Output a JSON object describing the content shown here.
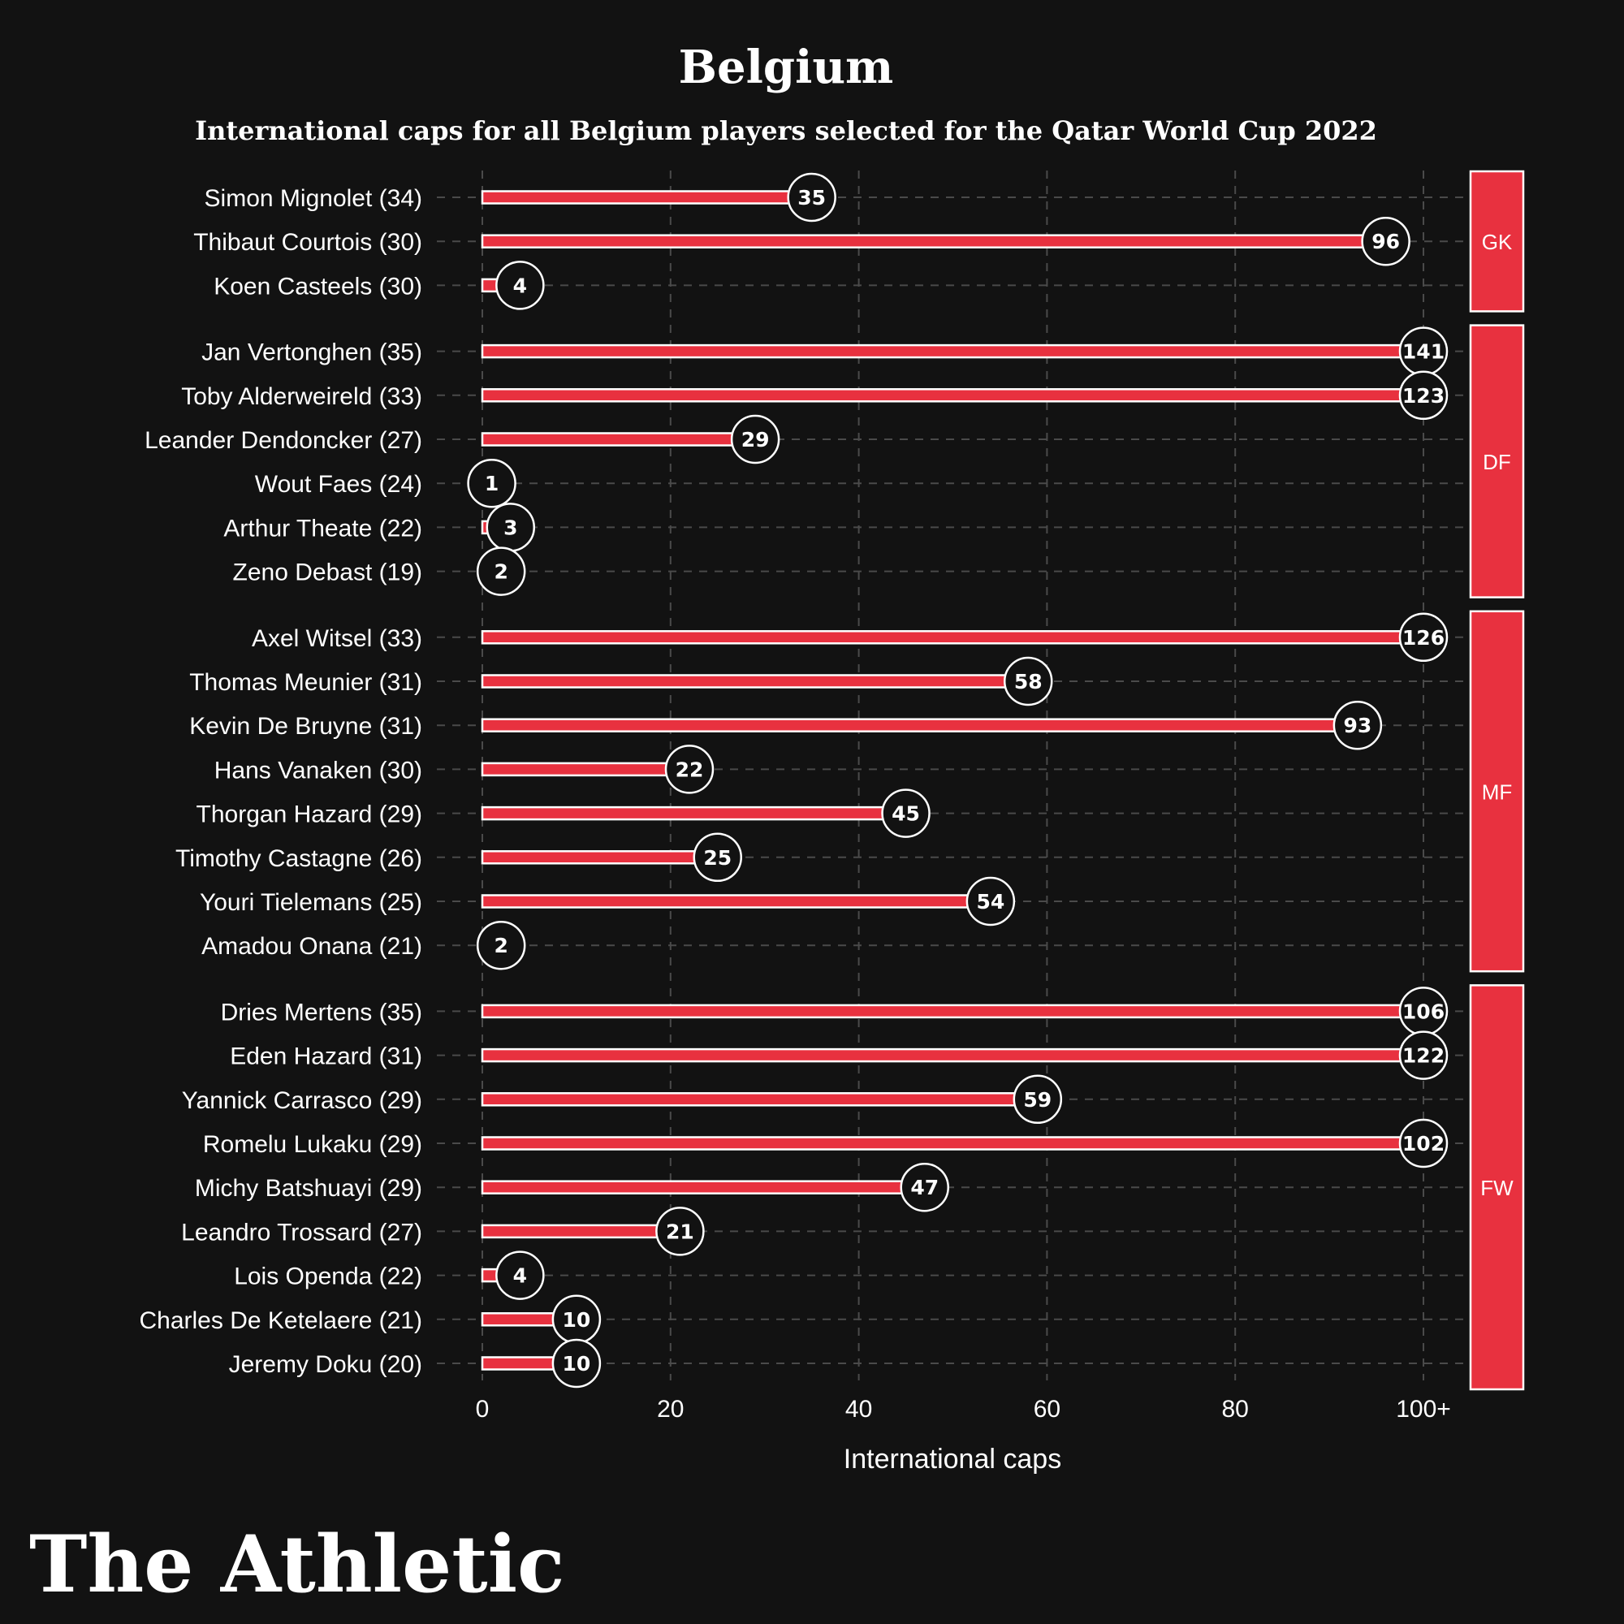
{
  "colors": {
    "background": "#121212",
    "bar": "#e8313f",
    "bar_outline": "#ffffff",
    "grid": "#4a4a4a",
    "text": "#ffffff",
    "bubble_fill": "#121212"
  },
  "brand": "The Athletic",
  "chart_data": {
    "type": "bar",
    "orientation": "horizontal",
    "title": "Belgium",
    "subtitle": "International caps for all Belgium players selected for the Qatar World Cup 2022",
    "xlabel": "International caps",
    "ylabel": "",
    "xlim": [
      0,
      100
    ],
    "x_ticks": [
      "0",
      "20",
      "40",
      "60",
      "80",
      "100+"
    ],
    "x_tick_values": [
      0,
      20,
      40,
      60,
      80,
      100
    ],
    "grid": true,
    "value_cap": 100,
    "groups": [
      {
        "label": "GK",
        "players": [
          {
            "name": "Simon Mignolet (34)",
            "value": 35
          },
          {
            "name": "Thibaut Courtois (30)",
            "value": 96
          },
          {
            "name": "Koen Casteels (30)",
            "value": 4
          }
        ]
      },
      {
        "label": "DF",
        "players": [
          {
            "name": "Jan Vertonghen (35)",
            "value": 141
          },
          {
            "name": "Toby Alderweireld (33)",
            "value": 123
          },
          {
            "name": "Leander Dendoncker (27)",
            "value": 29
          },
          {
            "name": "Wout Faes (24)",
            "value": 1
          },
          {
            "name": "Arthur Theate (22)",
            "value": 3
          },
          {
            "name": "Zeno Debast (19)",
            "value": 2
          }
        ]
      },
      {
        "label": "MF",
        "players": [
          {
            "name": "Axel Witsel (33)",
            "value": 126
          },
          {
            "name": "Thomas Meunier (31)",
            "value": 58
          },
          {
            "name": "Kevin De Bruyne (31)",
            "value": 93
          },
          {
            "name": "Hans Vanaken (30)",
            "value": 22
          },
          {
            "name": "Thorgan Hazard (29)",
            "value": 45
          },
          {
            "name": "Timothy Castagne (26)",
            "value": 25
          },
          {
            "name": "Youri Tielemans (25)",
            "value": 54
          },
          {
            "name": "Amadou Onana (21)",
            "value": 2
          }
        ]
      },
      {
        "label": "FW",
        "players": [
          {
            "name": "Dries Mertens (35)",
            "value": 106
          },
          {
            "name": "Eden Hazard (31)",
            "value": 122
          },
          {
            "name": "Yannick Carrasco (29)",
            "value": 59
          },
          {
            "name": "Romelu Lukaku (29)",
            "value": 102
          },
          {
            "name": "Michy Batshuayi (29)",
            "value": 47
          },
          {
            "name": "Leandro Trossard (27)",
            "value": 21
          },
          {
            "name": "Lois Openda (22)",
            "value": 4
          },
          {
            "name": "Charles De Ketelaere (21)",
            "value": 10
          },
          {
            "name": "Jeremy Doku (20)",
            "value": 10
          }
        ]
      }
    ]
  }
}
